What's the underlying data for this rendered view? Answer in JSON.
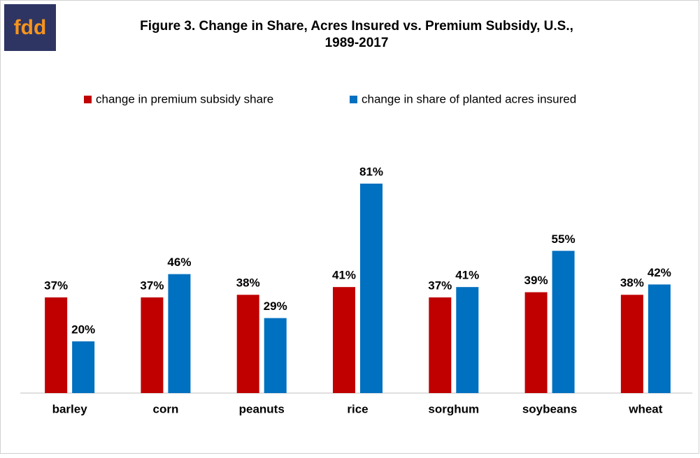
{
  "logo": "fdd",
  "chart_data": {
    "type": "bar",
    "title": [
      "Figure 3. Change in Share, Acres Insured vs. Premium Subsidy, U.S.,",
      "1989-2017"
    ],
    "categories": [
      "barley",
      "corn",
      "peanuts",
      "rice",
      "sorghum",
      "soybeans",
      "wheat"
    ],
    "series": [
      {
        "name": "change in premium subsidy share",
        "color": "#c00000",
        "values": [
          37,
          37,
          38,
          41,
          37,
          39,
          38
        ],
        "value_labels": [
          "37%",
          "37%",
          "38%",
          "41%",
          "37%",
          "39%",
          "38%"
        ]
      },
      {
        "name": "change in share of planted acres insured",
        "color": "#0070c0",
        "values": [
          20,
          46,
          29,
          81,
          41,
          55,
          42
        ],
        "value_labels": [
          "20%",
          "46%",
          "29%",
          "81%",
          "41%",
          "55%",
          "42%"
        ]
      }
    ],
    "legend": "top"
  }
}
